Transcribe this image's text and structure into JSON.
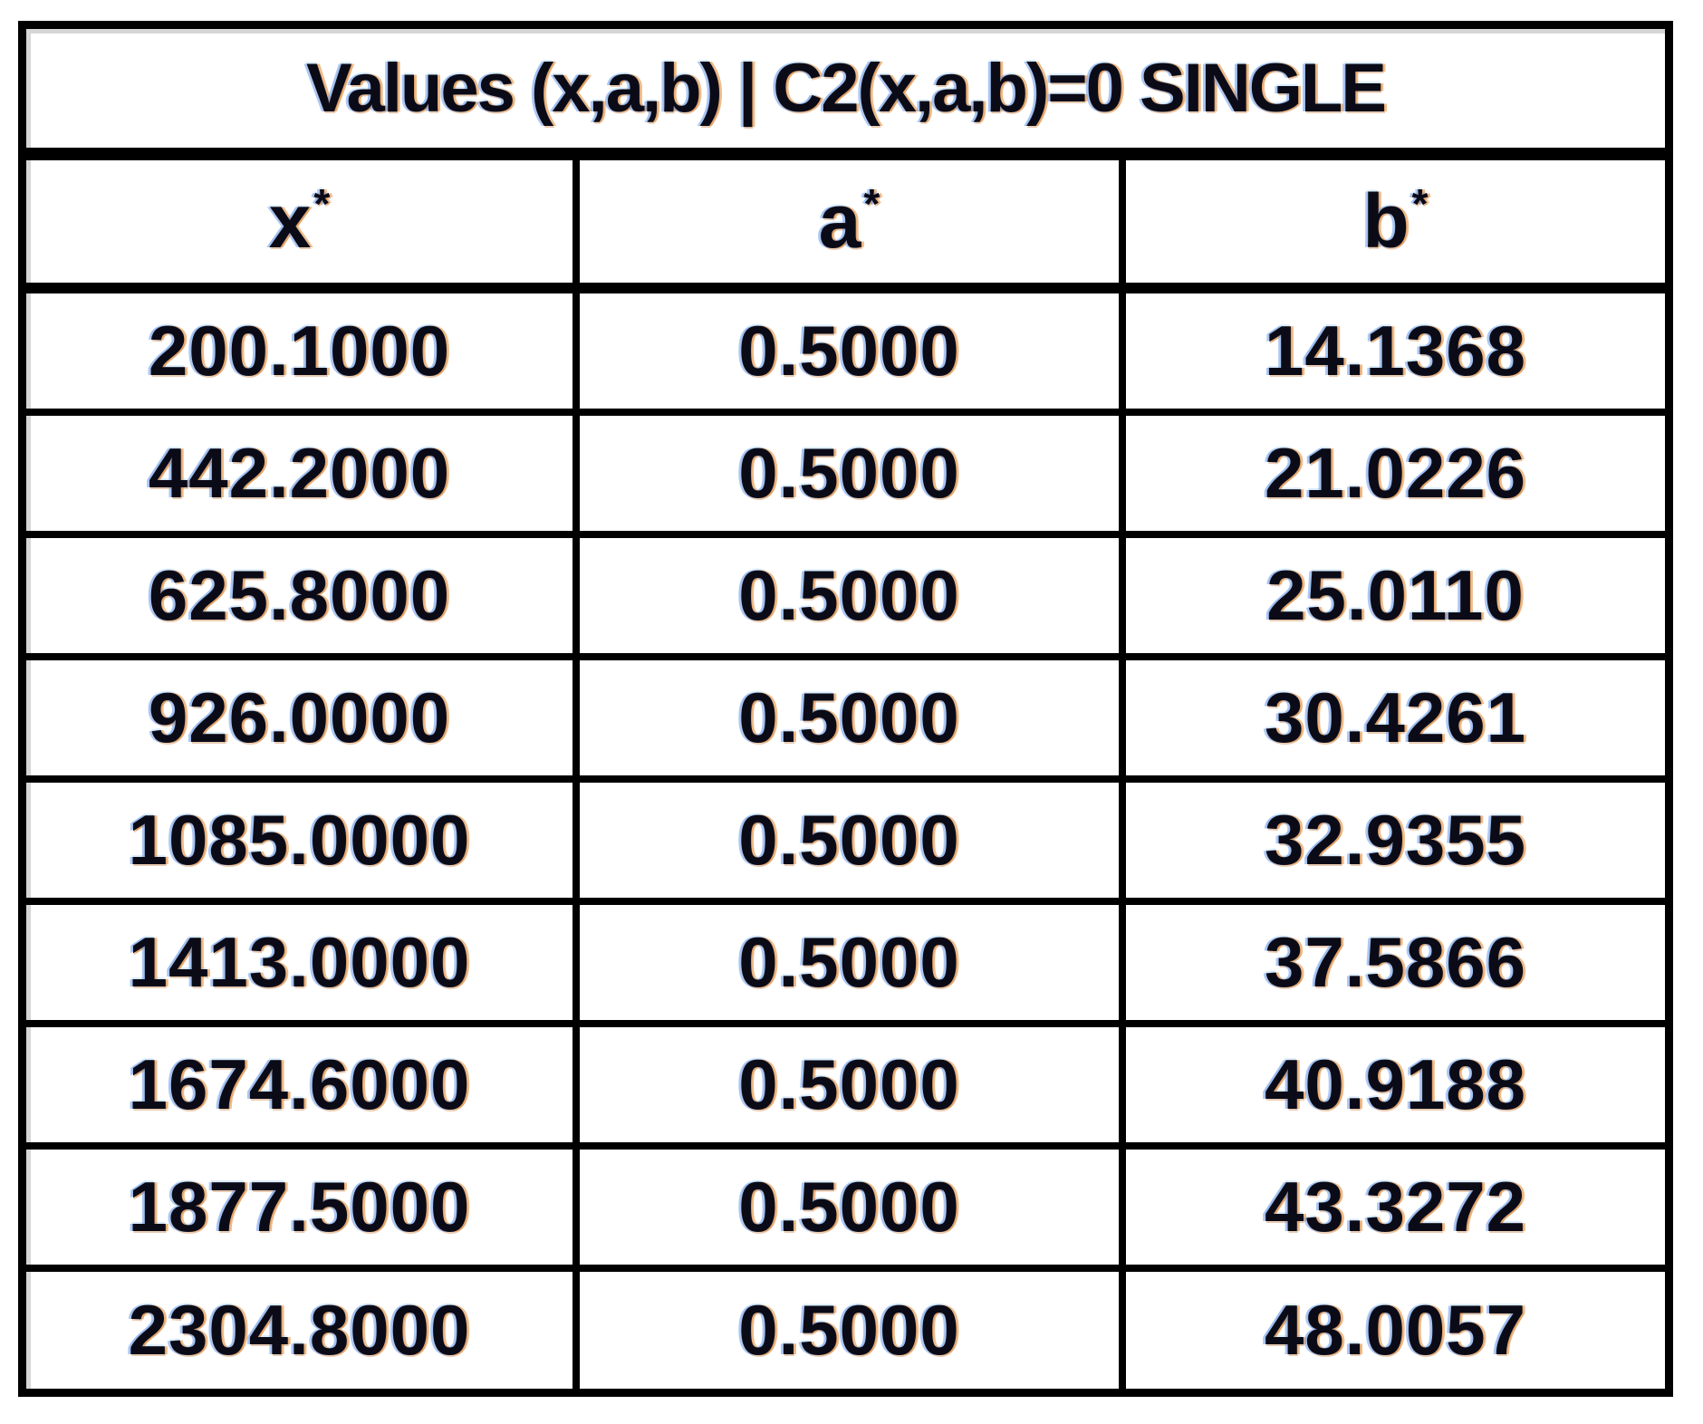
{
  "table": {
    "title": "Values (x,a,b) | C2(x,a,b)=0 SINGLE",
    "headers": [
      {
        "base": "x",
        "sup": "*"
      },
      {
        "base": "a",
        "sup": "*"
      },
      {
        "base": "b",
        "sup": "*"
      }
    ],
    "rows": [
      {
        "x": "200.1000",
        "a": "0.5000",
        "b": "14.1368"
      },
      {
        "x": "442.2000",
        "a": "0.5000",
        "b": "21.0226"
      },
      {
        "x": "625.8000",
        "a": "0.5000",
        "b": "25.0110"
      },
      {
        "x": "926.0000",
        "a": "0.5000",
        "b": "30.4261"
      },
      {
        "x": "1085.0000",
        "a": "0.5000",
        "b": "32.9355"
      },
      {
        "x": "1413.0000",
        "a": "0.5000",
        "b": "37.5866"
      },
      {
        "x": "1674.6000",
        "a": "0.5000",
        "b": "40.9188"
      },
      {
        "x": "1877.5000",
        "a": "0.5000",
        "b": "43.3272"
      },
      {
        "x": "2304.8000",
        "a": "0.5000",
        "b": "48.0057"
      }
    ]
  },
  "colors": {
    "border": "#000000",
    "background": "#ffffff",
    "text": "#0b0b18",
    "fringe_warm": "#de852d",
    "fringe_cool": "#5f91e6",
    "inner_edge": "#d6d6d6"
  },
  "chart_data": {
    "type": "table",
    "title": "Values (x,a,b) | C2(x,a,b)=0 SINGLE",
    "columns": [
      "x*",
      "a*",
      "b*"
    ],
    "rows": [
      [
        200.1,
        0.5,
        14.1368
      ],
      [
        442.2,
        0.5,
        21.0226
      ],
      [
        625.8,
        0.5,
        25.011
      ],
      [
        926.0,
        0.5,
        30.4261
      ],
      [
        1085.0,
        0.5,
        32.9355
      ],
      [
        1413.0,
        0.5,
        37.5866
      ],
      [
        1674.6,
        0.5,
        40.9188
      ],
      [
        1877.5,
        0.5,
        43.3272
      ],
      [
        2304.8,
        0.5,
        48.0057
      ]
    ]
  }
}
